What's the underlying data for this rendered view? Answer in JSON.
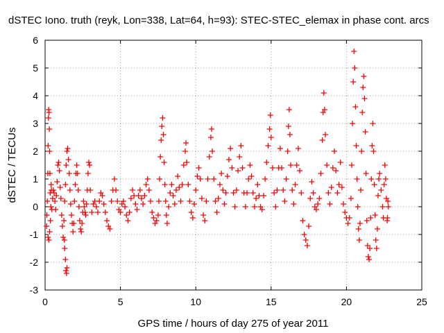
{
  "chart_data": {
    "type": "scatter",
    "title": "dSTEC Iono. truth (reyk, Lon=338, Lat=64, h=93): STEC-STEC_elemax in phase cont. arcs",
    "xlabel": "GPS time / hours of day 275 of year 2011",
    "ylabel": "dSTEC  / TECUs",
    "xlim": [
      0,
      25
    ],
    "ylim": [
      -3,
      6
    ],
    "xticks": [
      0,
      5,
      10,
      15,
      20,
      25
    ],
    "yticks": [
      -3,
      -2,
      -1,
      0,
      1,
      2,
      3,
      4,
      5,
      6
    ],
    "grid": true,
    "marker": "plus",
    "series_color": "#ff0000",
    "series": [
      {
        "points": [
          [
            0.1,
            -0.7
          ],
          [
            0.12,
            -0.3
          ],
          [
            0.15,
            0.2
          ],
          [
            0.18,
            1.2
          ],
          [
            0.2,
            2.2
          ],
          [
            0.22,
            3.2
          ],
          [
            0.24,
            3.5
          ],
          [
            0.26,
            3.4
          ],
          [
            0.28,
            2.8
          ],
          [
            0.3,
            2.0
          ],
          [
            0.32,
            1.2
          ],
          [
            0.34,
            0.5
          ],
          [
            0.2,
            -1.1
          ],
          [
            0.25,
            -1.2
          ],
          [
            0.3,
            -0.9
          ],
          [
            0.35,
            -0.5
          ],
          [
            0.38,
            0.0
          ],
          [
            0.4,
            0.8
          ],
          [
            0.42,
            0.6
          ],
          [
            0.45,
            -0.1
          ],
          [
            0.5,
            0.3
          ],
          [
            0.55,
            0.6
          ],
          [
            0.6,
            0.5
          ],
          [
            0.65,
            0.2
          ],
          [
            0.7,
            -0.1
          ],
          [
            0.75,
            0.4
          ],
          [
            0.8,
            0.9
          ],
          [
            0.85,
            1.5
          ],
          [
            0.9,
            1.6
          ],
          [
            0.95,
            1.3
          ],
          [
            1.0,
            0.7
          ],
          [
            1.05,
            0.3
          ],
          [
            1.1,
            -0.3
          ],
          [
            1.15,
            -0.7
          ],
          [
            1.2,
            -1.1
          ],
          [
            1.25,
            -0.5
          ],
          [
            1.3,
            0.2
          ],
          [
            1.35,
            0.8
          ],
          [
            1.4,
            1.5
          ],
          [
            1.45,
            2.0
          ],
          [
            1.5,
            2.1
          ],
          [
            1.55,
            1.7
          ],
          [
            1.6,
            1.2
          ],
          [
            1.35,
            -1.9
          ],
          [
            1.38,
            -2.3
          ],
          [
            1.42,
            -2.4
          ],
          [
            1.45,
            -2.2
          ],
          [
            1.3,
            -1.5
          ],
          [
            1.28,
            -1.2
          ],
          [
            1.65,
            0.6
          ],
          [
            1.7,
            0.1
          ],
          [
            1.75,
            -0.3
          ],
          [
            1.8,
            -0.6
          ],
          [
            1.85,
            -0.9
          ],
          [
            1.9,
            -0.6
          ],
          [
            1.95,
            0.2
          ],
          [
            2.0,
            0.8
          ],
          [
            2.05,
            1.2
          ],
          [
            2.1,
            1.5
          ],
          [
            2.15,
            1.2
          ],
          [
            2.2,
            0.6
          ],
          [
            2.25,
            0.0
          ],
          [
            2.3,
            -0.5
          ],
          [
            2.35,
            -0.8
          ],
          [
            2.4,
            -0.9
          ],
          [
            2.45,
            -0.6
          ],
          [
            2.5,
            -0.2
          ],
          [
            2.55,
            0.2
          ],
          [
            2.6,
            0.0
          ],
          [
            2.65,
            -0.2
          ],
          [
            2.7,
            -0.3
          ],
          [
            2.75,
            0.1
          ],
          [
            2.8,
            0.6
          ],
          [
            2.85,
            1.2
          ],
          [
            2.9,
            1.6
          ],
          [
            2.95,
            1.5
          ],
          [
            3.0,
            0.6
          ],
          [
            3.1,
            -0.2
          ],
          [
            3.2,
            0.1
          ],
          [
            3.3,
            0.2
          ],
          [
            3.4,
            0.0
          ],
          [
            3.5,
            -0.2
          ],
          [
            3.6,
            0.2
          ],
          [
            3.7,
            0.5
          ],
          [
            3.8,
            0.4
          ],
          [
            3.9,
            0.1
          ],
          [
            4.0,
            -0.2
          ],
          [
            4.1,
            -0.5
          ],
          [
            4.2,
            -0.7
          ],
          [
            4.3,
            -0.8
          ],
          [
            4.4,
            0.2
          ],
          [
            4.5,
            0.6
          ],
          [
            4.6,
            1.0
          ],
          [
            4.7,
            0.6
          ],
          [
            4.8,
            0.2
          ],
          [
            4.9,
            -0.1
          ],
          [
            5.0,
            -0.2
          ],
          [
            5.1,
            0.1
          ],
          [
            5.2,
            0.2
          ],
          [
            5.3,
            0.0
          ],
          [
            5.4,
            -0.3
          ],
          [
            5.5,
            -0.5
          ],
          [
            5.6,
            -0.2
          ],
          [
            5.7,
            0.3
          ],
          [
            5.8,
            0.6
          ],
          [
            5.9,
            0.4
          ],
          [
            6.0,
            0.1
          ],
          [
            6.1,
            -0.1
          ],
          [
            6.2,
            0.4
          ],
          [
            6.3,
            0.6
          ],
          [
            6.4,
            0.3
          ],
          [
            6.5,
            0.1
          ],
          [
            6.6,
            0.4
          ],
          [
            6.7,
            0.8
          ],
          [
            6.8,
            1.0
          ],
          [
            6.9,
            0.6
          ],
          [
            7.0,
            0.2
          ],
          [
            7.1,
            -0.2
          ],
          [
            7.2,
            -0.4
          ],
          [
            7.3,
            -0.6
          ],
          [
            7.4,
            -0.5
          ],
          [
            7.5,
            -0.3
          ],
          [
            7.55,
            0.2
          ],
          [
            7.6,
            1.0
          ],
          [
            7.65,
            1.8
          ],
          [
            7.7,
            2.4
          ],
          [
            7.75,
            2.9
          ],
          [
            7.8,
            3.2
          ],
          [
            7.85,
            2.6
          ],
          [
            7.9,
            1.6
          ],
          [
            7.95,
            0.8
          ],
          [
            8.0,
            0.2
          ],
          [
            8.05,
            -0.3
          ],
          [
            8.1,
            -0.6
          ],
          [
            8.2,
            0.0
          ],
          [
            8.3,
            0.5
          ],
          [
            8.4,
            0.8
          ],
          [
            8.5,
            0.4
          ],
          [
            8.6,
            0.1
          ],
          [
            8.7,
            0.6
          ],
          [
            8.8,
            1.1
          ],
          [
            8.9,
            0.7
          ],
          [
            9.0,
            0.2
          ],
          [
            9.1,
            0.8
          ],
          [
            9.2,
            1.5
          ],
          [
            9.3,
            2.0
          ],
          [
            9.35,
            2.3
          ],
          [
            9.4,
            1.6
          ],
          [
            9.5,
            0.8
          ],
          [
            9.6,
            0.2
          ],
          [
            9.7,
            -0.2
          ],
          [
            9.8,
            -0.4
          ],
          [
            9.9,
            0.1
          ],
          [
            10.0,
            0.6
          ],
          [
            10.1,
            1.1
          ],
          [
            10.2,
            1.4
          ],
          [
            10.3,
            1.0
          ],
          [
            10.4,
            0.3
          ],
          [
            10.5,
            -0.3
          ],
          [
            10.6,
            -0.5
          ],
          [
            10.7,
            0.2
          ],
          [
            10.8,
            1.0
          ],
          [
            10.9,
            1.8
          ],
          [
            11.0,
            2.5
          ],
          [
            11.05,
            2.8
          ],
          [
            11.1,
            2.0
          ],
          [
            11.2,
            1.0
          ],
          [
            11.3,
            0.2
          ],
          [
            11.4,
            -0.2
          ],
          [
            11.5,
            0.3
          ],
          [
            11.6,
            0.8
          ],
          [
            11.7,
            1.2
          ],
          [
            11.8,
            0.6
          ],
          [
            11.9,
            0.1
          ],
          [
            12.0,
            0.5
          ],
          [
            12.1,
            1.1
          ],
          [
            12.2,
            1.7
          ],
          [
            12.3,
            2.1
          ],
          [
            12.4,
            1.4
          ],
          [
            12.5,
            0.5
          ],
          [
            12.6,
            0.0
          ],
          [
            12.7,
            0.6
          ],
          [
            12.8,
            1.3
          ],
          [
            12.9,
            1.8
          ],
          [
            13.0,
            2.2
          ],
          [
            13.1,
            1.4
          ],
          [
            13.2,
            0.5
          ],
          [
            13.3,
            0.0
          ],
          [
            13.4,
            0.5
          ],
          [
            13.5,
            1.0
          ],
          [
            13.6,
            1.5
          ],
          [
            13.7,
            1.1
          ],
          [
            13.8,
            0.5
          ],
          [
            13.9,
            0.0
          ],
          [
            14.0,
            0.3
          ],
          [
            14.1,
            0.8
          ],
          [
            14.2,
            0.4
          ],
          [
            14.3,
            0.0
          ],
          [
            14.4,
            -0.1
          ],
          [
            14.5,
            0.4
          ],
          [
            14.6,
            1.0
          ],
          [
            14.7,
            1.6
          ],
          [
            14.8,
            2.2
          ],
          [
            14.9,
            2.8
          ],
          [
            14.95,
            3.3
          ],
          [
            15.0,
            2.5
          ],
          [
            15.1,
            1.4
          ],
          [
            15.2,
            0.5
          ],
          [
            15.3,
            0.0
          ],
          [
            15.4,
            0.6
          ],
          [
            15.5,
            1.4
          ],
          [
            15.6,
            2.1
          ],
          [
            15.7,
            1.4
          ],
          [
            15.8,
            0.6
          ],
          [
            15.9,
            0.2
          ],
          [
            16.0,
            1.0
          ],
          [
            16.1,
            2.0
          ],
          [
            16.15,
            2.9
          ],
          [
            16.2,
            3.5
          ],
          [
            16.25,
            2.6
          ],
          [
            16.3,
            1.5
          ],
          [
            16.4,
            0.6
          ],
          [
            16.5,
            0.1
          ],
          [
            16.6,
            0.8
          ],
          [
            16.7,
            1.5
          ],
          [
            16.8,
            2.1
          ],
          [
            16.9,
            1.3
          ],
          [
            17.0,
            0.5
          ],
          [
            17.1,
            -0.5
          ],
          [
            17.2,
            -1.0
          ],
          [
            17.3,
            -1.2
          ],
          [
            17.4,
            -1.4
          ],
          [
            17.5,
            -0.7
          ],
          [
            17.6,
            0.3
          ],
          [
            17.7,
            0.9
          ],
          [
            17.8,
            0.5
          ],
          [
            17.9,
            0.0
          ],
          [
            18.0,
            -0.1
          ],
          [
            18.1,
            0.1
          ],
          [
            18.2,
            0.3
          ],
          [
            18.3,
            1.2
          ],
          [
            18.4,
            2.4
          ],
          [
            18.45,
            3.4
          ],
          [
            18.5,
            4.1
          ],
          [
            18.55,
            3.5
          ],
          [
            18.6,
            2.6
          ],
          [
            18.7,
            1.5
          ],
          [
            18.8,
            0.5
          ],
          [
            18.9,
            0.1
          ],
          [
            19.0,
            0.7
          ],
          [
            19.1,
            1.4
          ],
          [
            19.2,
            2.0
          ],
          [
            19.3,
            1.3
          ],
          [
            19.4,
            0.5
          ],
          [
            19.5,
            0.8
          ],
          [
            19.6,
            1.6
          ],
          [
            19.7,
            0.7
          ],
          [
            19.8,
            0.1
          ],
          [
            19.9,
            -0.2
          ],
          [
            20.0,
            -0.4
          ],
          [
            20.1,
            -0.6
          ],
          [
            20.2,
            -0.4
          ],
          [
            20.3,
            0.3
          ],
          [
            20.35,
            1.5
          ],
          [
            20.4,
            3.0
          ],
          [
            20.45,
            4.5
          ],
          [
            20.5,
            5.6
          ],
          [
            20.55,
            5.0
          ],
          [
            20.6,
            3.6
          ],
          [
            20.65,
            2.2
          ],
          [
            20.7,
            1.0
          ],
          [
            20.75,
            0.0
          ],
          [
            20.8,
            -0.8
          ],
          [
            20.85,
            -1.2
          ],
          [
            20.9,
            -0.6
          ],
          [
            20.95,
            0.6
          ],
          [
            21.0,
            2.0
          ],
          [
            21.05,
            3.4
          ],
          [
            21.1,
            4.3
          ],
          [
            21.15,
            4.7
          ],
          [
            21.2,
            3.9
          ],
          [
            21.25,
            2.7
          ],
          [
            21.3,
            1.2
          ],
          [
            21.35,
            -0.5
          ],
          [
            21.4,
            -1.4
          ],
          [
            21.45,
            -1.8
          ],
          [
            21.5,
            -1.9
          ],
          [
            21.55,
            -1.5
          ],
          [
            21.6,
            -0.4
          ],
          [
            21.65,
            1.0
          ],
          [
            21.7,
            2.2
          ],
          [
            21.75,
            3.0
          ],
          [
            21.8,
            2.0
          ],
          [
            21.85,
            0.8
          ],
          [
            21.9,
            -0.3
          ],
          [
            21.95,
            -1.2
          ],
          [
            22.0,
            -1.5
          ],
          [
            22.05,
            -0.8
          ],
          [
            22.1,
            0.4
          ],
          [
            22.15,
            1.0
          ],
          [
            22.2,
            1.2
          ],
          [
            22.3,
            0.6
          ],
          [
            22.4,
            0.0
          ],
          [
            22.45,
            -0.4
          ],
          [
            22.5,
            0.8
          ],
          [
            22.55,
            1.5
          ],
          [
            22.6,
            1.0
          ],
          [
            22.65,
            0.3
          ],
          [
            22.7,
            -0.5
          ],
          [
            22.72,
            -0.4
          ],
          [
            22.75,
            0.2
          ],
          [
            22.78,
            0.0
          ]
        ]
      }
    ]
  }
}
